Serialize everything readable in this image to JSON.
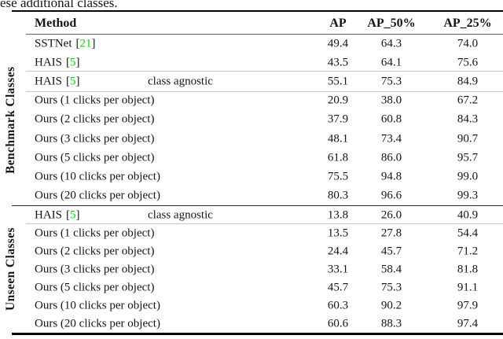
{
  "page": {
    "text_fragment_above_table": "ese additional classes."
  },
  "colors": {
    "citation_green": "#00dd00",
    "text": "#151515",
    "rule_black": "#000000",
    "rule_gray": "#c9c9c9"
  },
  "labels": {
    "cite_open": "[",
    "cite_close": "]"
  },
  "table": {
    "columns": [
      "Method",
      "AP",
      "AP_50%",
      "AP_25%"
    ],
    "sections": [
      {
        "label": "Benchmark Classes",
        "rows": [
          {
            "method": "SSTNet",
            "cite": "21",
            "note": "",
            "ap": "49.4",
            "ap50": "64.3",
            "ap25": "74.0"
          },
          {
            "method": "HAIS",
            "cite": "5",
            "note": "",
            "ap": "43.5",
            "ap50": "64.1",
            "ap25": "75.6"
          },
          {
            "method": "HAIS",
            "cite": "5",
            "note": "class agnostic",
            "ap": "55.1",
            "ap50": "75.3",
            "ap25": "84.9"
          },
          {
            "method": "Ours (1 clicks per object)",
            "cite": "",
            "note": "",
            "ap": "20.9",
            "ap50": "38.0",
            "ap25": "67.2"
          },
          {
            "method": "Ours (2 clicks per object)",
            "cite": "",
            "note": "",
            "ap": "37.9",
            "ap50": "60.8",
            "ap25": "84.3"
          },
          {
            "method": "Ours (3 clicks per object)",
            "cite": "",
            "note": "",
            "ap": "48.1",
            "ap50": "73.4",
            "ap25": "90.7"
          },
          {
            "method": "Ours (5 clicks per object)",
            "cite": "",
            "note": "",
            "ap": "61.8",
            "ap50": "86.0",
            "ap25": "95.7"
          },
          {
            "method": "Ours (10 clicks per object)",
            "cite": "",
            "note": "",
            "ap": "75.5",
            "ap50": "94.8",
            "ap25": "99.0"
          },
          {
            "method": "Ours (20 clicks per object)",
            "cite": "",
            "note": "",
            "ap": "80.3",
            "ap50": "96.6",
            "ap25": "99.3"
          }
        ]
      },
      {
        "label": "Unseen Classes",
        "rows": [
          {
            "method": "HAIS",
            "cite": "5",
            "note": "class agnostic",
            "ap": "13.8",
            "ap50": "26.0",
            "ap25": "40.9"
          },
          {
            "method": "Ours (1 clicks per object)",
            "cite": "",
            "note": "",
            "ap": "13.5",
            "ap50": "27.8",
            "ap25": "54.4"
          },
          {
            "method": "Ours (2 clicks per object)",
            "cite": "",
            "note": "",
            "ap": "24.4",
            "ap50": "45.7",
            "ap25": "71.2"
          },
          {
            "method": "Ours (3 clicks per object)",
            "cite": "",
            "note": "",
            "ap": "33.1",
            "ap50": "58.4",
            "ap25": "81.8"
          },
          {
            "method": "Ours (5 clicks per object)",
            "cite": "",
            "note": "",
            "ap": "45.7",
            "ap50": "75.3",
            "ap25": "91.1"
          },
          {
            "method": "Ours (10 clicks per object)",
            "cite": "",
            "note": "",
            "ap": "60.3",
            "ap50": "90.2",
            "ap25": "97.9"
          },
          {
            "method": "Ours (20 clicks per object)",
            "cite": "",
            "note": "",
            "ap": "60.6",
            "ap50": "88.3",
            "ap25": "97.4"
          }
        ]
      }
    ]
  }
}
